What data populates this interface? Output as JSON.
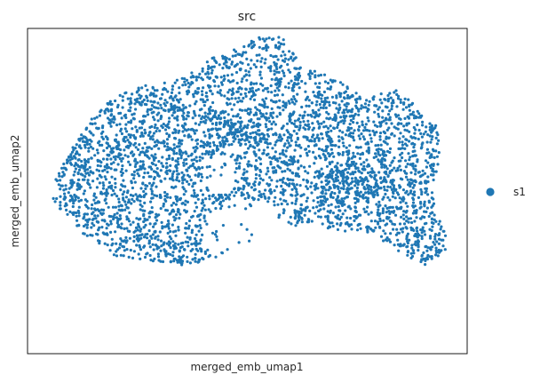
{
  "chart_data": {
    "type": "scatter",
    "title": "src",
    "xlabel": "merged_emb_umap1",
    "ylabel": "merged_emb_umap2",
    "ticks_shown": false,
    "grid": false,
    "legend_position": "right",
    "xlim": [
      0,
      100
    ],
    "ylim": [
      0,
      100
    ],
    "series": [
      {
        "name": "s1",
        "color": "#1f77b4",
        "approx_point_count": 4000
      }
    ],
    "region_outline": [
      [
        5,
        48
      ],
      [
        8,
        43
      ],
      [
        11,
        41
      ],
      [
        10,
        38
      ],
      [
        14,
        36
      ],
      [
        20,
        30
      ],
      [
        30,
        28
      ],
      [
        37,
        27
      ],
      [
        40,
        28
      ],
      [
        47,
        32
      ],
      [
        52,
        35
      ],
      [
        58,
        38
      ],
      [
        64,
        40
      ],
      [
        70,
        38
      ],
      [
        76,
        37
      ],
      [
        80,
        35
      ],
      [
        86,
        30
      ],
      [
        91,
        27
      ],
      [
        95,
        32
      ],
      [
        96,
        37
      ],
      [
        93,
        42
      ],
      [
        92,
        50
      ],
      [
        93,
        56
      ],
      [
        94,
        62
      ],
      [
        93,
        70
      ],
      [
        90,
        73
      ],
      [
        87,
        78
      ],
      [
        84,
        82
      ],
      [
        80,
        80
      ],
      [
        76,
        79
      ],
      [
        72,
        83
      ],
      [
        68,
        86
      ],
      [
        63,
        88
      ],
      [
        60,
        93
      ],
      [
        58,
        97
      ],
      [
        55,
        98
      ],
      [
        52,
        97
      ],
      [
        48,
        94
      ],
      [
        42,
        91
      ],
      [
        38,
        87
      ],
      [
        33,
        84
      ],
      [
        28,
        83
      ],
      [
        23,
        81
      ],
      [
        19,
        78
      ],
      [
        15,
        73
      ],
      [
        12,
        67
      ],
      [
        10,
        63
      ],
      [
        7,
        56
      ],
      [
        5,
        50
      ]
    ],
    "holes": [
      {
        "cx": 50,
        "cy": 36,
        "rx": 10,
        "ry": 11
      },
      {
        "cx": 52,
        "cy": 22,
        "rx": 8,
        "ry": 8
      },
      {
        "cx": 53,
        "cy": 12,
        "rx": 12,
        "ry": 10
      },
      {
        "cx": 44,
        "cy": 55,
        "rx": 4,
        "ry": 6
      }
    ],
    "dense_regions": [
      {
        "cx": 20,
        "cy": 22,
        "rx": 10,
        "ry": 6
      },
      {
        "cx": 70,
        "cy": 18,
        "rx": 8,
        "ry": 6
      },
      {
        "cx": 87,
        "cy": 8,
        "rx": 6,
        "ry": 3
      },
      {
        "cx": 73,
        "cy": 52,
        "rx": 8,
        "ry": 6
      },
      {
        "cx": 47,
        "cy": 68,
        "rx": 6,
        "ry": 4
      }
    ]
  }
}
